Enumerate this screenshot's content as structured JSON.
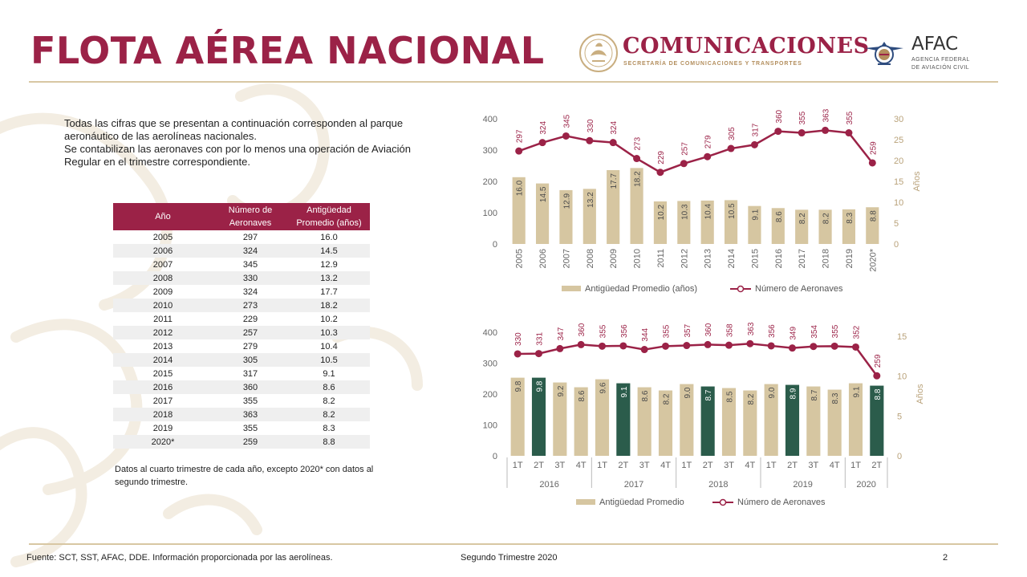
{
  "header": {
    "title": "FLOTA AÉREA NACIONAL",
    "com_name": "COMUNICACIONES",
    "com_subtitle": "SECRETARÍA DE COMUNICACIONES Y TRANSPORTES",
    "afac_name": "AFAC",
    "afac_sub1": "AGENCIA FEDERAL",
    "afac_sub2": "DE AVIACIÓN CIVIL"
  },
  "intro": {
    "p1": "Todas las cifras que se presentan a continuación corresponden al parque aeronáutico de las aerolíneas nacionales.",
    "p2": "Se contabilizan las aeronaves con por lo menos una operación de Aviación Regular en el trimestre correspondiente."
  },
  "table": {
    "headers": [
      "Año",
      "Número de Aeronaves",
      "Antigüedad Promedio (años)"
    ],
    "rows": [
      [
        "2005",
        "297",
        "16.0"
      ],
      [
        "2006",
        "324",
        "14.5"
      ],
      [
        "2007",
        "345",
        "12.9"
      ],
      [
        "2008",
        "330",
        "13.2"
      ],
      [
        "2009",
        "324",
        "17.7"
      ],
      [
        "2010",
        "273",
        "18.2"
      ],
      [
        "2011",
        "229",
        "10.2"
      ],
      [
        "2012",
        "257",
        "10.3"
      ],
      [
        "2013",
        "279",
        "10.4"
      ],
      [
        "2014",
        "305",
        "10.5"
      ],
      [
        "2015",
        "317",
        "9.1"
      ],
      [
        "2016",
        "360",
        "8.6"
      ],
      [
        "2017",
        "355",
        "8.2"
      ],
      [
        "2018",
        "363",
        "8.2"
      ],
      [
        "2019",
        "355",
        "8.3"
      ],
      [
        "2020*",
        "259",
        "8.8"
      ]
    ]
  },
  "note": "Datos al cuarto trimestre de cada año, excepto 2020* con datos al segundo trimestre.",
  "footer": {
    "source": "Fuente: SCT, SST, AFAC, DDE. Información proporcionada por las aerolíneas.",
    "period": "Segundo Trimestre 2020",
    "page": "2"
  },
  "colors": {
    "wine": "#9B2247",
    "beige": "#D6C6A1",
    "green": "#2B5C4B",
    "gold": "#B9A27A"
  },
  "chart_data": [
    {
      "type": "bar",
      "categories": [
        "2005",
        "2006",
        "2007",
        "2008",
        "2009",
        "2010",
        "2011",
        "2012",
        "2013",
        "2014",
        "2015",
        "2016",
        "2017",
        "2018",
        "2019",
        "2020*"
      ],
      "series": [
        {
          "name": "Antigüedad Promedio (años)",
          "type": "bar",
          "axis": "right",
          "values": [
            16.0,
            14.5,
            12.9,
            13.2,
            17.7,
            18.2,
            10.2,
            10.3,
            10.4,
            10.5,
            9.1,
            8.6,
            8.2,
            8.2,
            8.3,
            8.8
          ]
        },
        {
          "name": "Número de Aeronaves",
          "type": "line",
          "axis": "left",
          "values": [
            297,
            324,
            345,
            330,
            324,
            273,
            229,
            257,
            279,
            305,
            317,
            360,
            355,
            363,
            355,
            259
          ]
        }
      ],
      "yleft": {
        "min": 0,
        "max": 400,
        "ticks": [
          0,
          100,
          200,
          300,
          400
        ]
      },
      "yright": {
        "min": 0,
        "max": 30,
        "ticks": [
          0,
          5,
          10,
          15,
          20,
          25,
          30
        ],
        "label": "Años"
      },
      "legend": "bottom"
    },
    {
      "type": "bar",
      "categories": [
        "1T",
        "2T",
        "3T",
        "4T",
        "1T",
        "2T",
        "3T",
        "4T",
        "1T",
        "2T",
        "3T",
        "4T",
        "1T",
        "2T",
        "3T",
        "4T",
        "1T",
        "2T"
      ],
      "groups": [
        {
          "label": "2016",
          "count": 4
        },
        {
          "label": "2017",
          "count": 4
        },
        {
          "label": "2018",
          "count": 4
        },
        {
          "label": "2019",
          "count": 4
        },
        {
          "label": "2020",
          "count": 2
        }
      ],
      "series": [
        {
          "name": "Antigüedad Promedio",
          "type": "bar",
          "axis": "right",
          "values": [
            9.8,
            9.8,
            9.2,
            8.6,
            9.6,
            9.1,
            8.6,
            8.2,
            9.0,
            8.7,
            8.5,
            8.2,
            9.0,
            8.9,
            8.7,
            8.3,
            9.1,
            8.8
          ],
          "highlight_color": "#2B5C4B",
          "highlight": [
            false,
            true,
            false,
            false,
            false,
            true,
            false,
            false,
            false,
            true,
            false,
            false,
            false,
            true,
            false,
            false,
            false,
            true
          ]
        },
        {
          "name": "Número de Aeronaves",
          "type": "line",
          "axis": "left",
          "values": [
            330,
            331,
            347,
            360,
            355,
            356,
            344,
            355,
            357,
            360,
            358,
            363,
            356,
            349,
            354,
            355,
            352,
            259
          ]
        }
      ],
      "yleft": {
        "min": 0,
        "max": 400,
        "ticks": [
          0,
          100,
          200,
          300,
          400
        ]
      },
      "yright": {
        "min": 0,
        "max": 15.5,
        "ticks": [
          0,
          5,
          10,
          15
        ],
        "label": "Años"
      },
      "legend": "bottom"
    }
  ]
}
